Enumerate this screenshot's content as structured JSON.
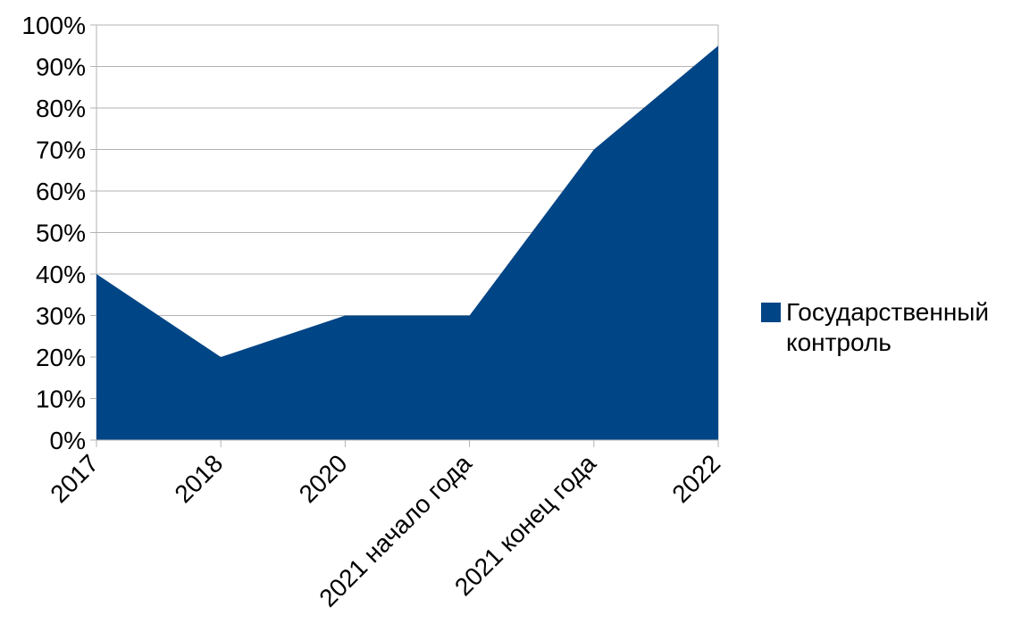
{
  "chart_data": {
    "type": "area",
    "categories": [
      "2017",
      "2018",
      "2020",
      "2021 начало года",
      "2021 конец года",
      "2022"
    ],
    "series": [
      {
        "name": "Государственный контроль",
        "values": [
          40,
          20,
          30,
          30,
          70,
          95
        ],
        "color": "#004586"
      }
    ],
    "y_ticks": [
      "0%",
      "10%",
      "20%",
      "30%",
      "40%",
      "50%",
      "60%",
      "70%",
      "80%",
      "90%",
      "100%"
    ],
    "ylim": [
      0,
      100
    ],
    "grid": true,
    "legend_position": "right",
    "title": "",
    "xlabel": "",
    "ylabel": ""
  },
  "legend": {
    "label": "Государственный контроль",
    "color": "#004586"
  }
}
